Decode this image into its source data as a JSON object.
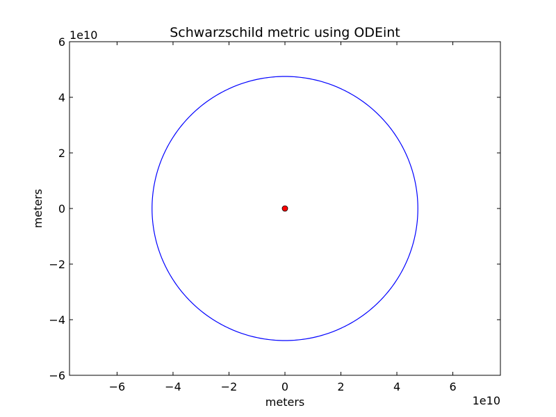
{
  "chart_data": {
    "type": "line",
    "title": "Schwarzschild metric using ODEint",
    "xlabel": "meters",
    "ylabel": "meters",
    "x_offset_text": "1e10",
    "y_offset_text": "1e10",
    "xlim": [
      -7.7,
      7.7
    ],
    "ylim": [
      -6,
      6
    ],
    "x_ticks": [
      -6,
      -4,
      -2,
      0,
      2,
      4,
      6
    ],
    "y_ticks": [
      -6,
      -4,
      -2,
      0,
      2,
      4,
      6
    ],
    "x_tick_labels": [
      "−6",
      "−4",
      "−2",
      "0",
      "2",
      "4",
      "6"
    ],
    "y_tick_labels": [
      "−6",
      "−4",
      "−2",
      "0",
      "2",
      "4",
      "6"
    ],
    "grid": false,
    "series": [
      {
        "kind": "orbit",
        "shape": "circle",
        "center": [
          0,
          0
        ],
        "radius": 4.75,
        "color": "#0000ff"
      },
      {
        "kind": "point",
        "x": 0,
        "y": 0,
        "color": "#ff0000"
      }
    ]
  }
}
